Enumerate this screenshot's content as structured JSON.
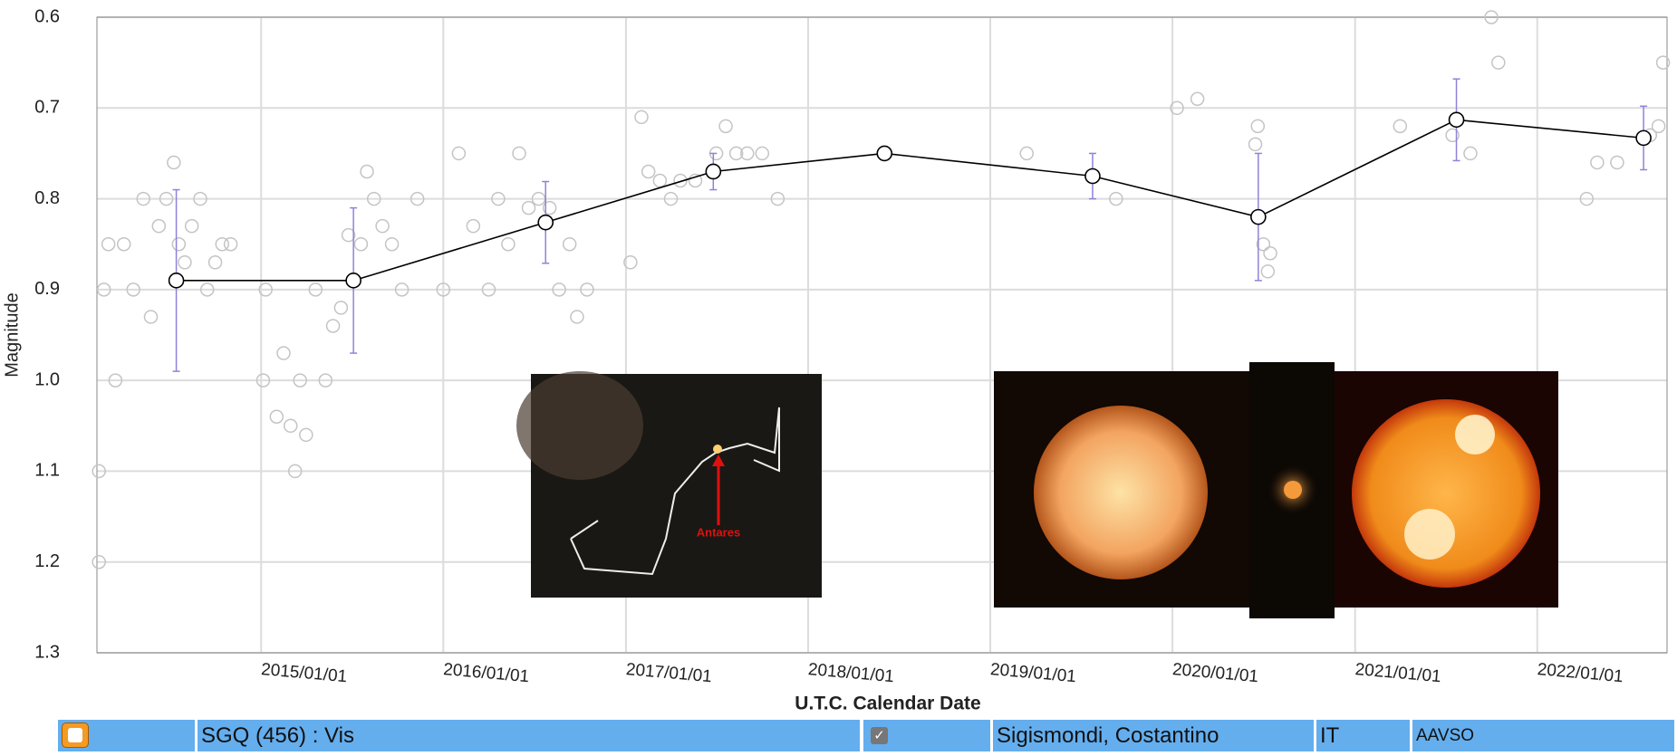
{
  "chart_data": {
    "type": "line",
    "x_label": "U.T.C. Calendar Date",
    "y_label": "Magnitude",
    "xlim": [
      "2014/02/06",
      "2022/09/18"
    ],
    "xticks": [
      "2015/01/01",
      "2016/01/01",
      "2017/01/01",
      "2018/01/01",
      "2019/01/01",
      "2020/01/01",
      "2021/01/01",
      "2022/01/01"
    ],
    "ylim": [
      0.6,
      1.3
    ],
    "y_inverted": true,
    "yticks": [
      0.6,
      0.7,
      0.8,
      0.9,
      {
        "value": 1,
        "label": "1.0"
      },
      1.1,
      1.2,
      1.3
    ],
    "grid": true,
    "series": [
      {
        "kind": "scatter",
        "color": "#c4c4c4",
        "x": [
          "2014/02/10",
          "2014/02/10",
          "2014/02/20",
          "2014/03/01",
          "2014/03/15",
          "2014/04/01",
          "2014/04/20",
          "2014/05/10",
          "2014/05/25",
          "2014/06/10",
          "2014/06/25",
          "2014/07/10",
          "2014/07/20",
          "2014/08/01",
          "2014/08/15",
          "2014/09/01",
          "2014/09/15",
          "2014/10/01",
          "2014/10/15",
          "2014/11/01",
          "2015/01/05",
          "2015/01/10",
          "2015/02/01",
          "2015/02/15",
          "2015/03/01",
          "2015/03/10",
          "2015/03/20",
          "2015/04/01",
          "2015/04/20",
          "2015/05/10",
          "2015/05/25",
          "2015/06/10",
          "2015/06/25",
          "2015/07/20",
          "2015/08/01",
          "2015/08/15",
          "2015/09/01",
          "2015/09/20",
          "2015/10/10",
          "2015/11/10",
          "2016/01/01",
          "2016/02/01",
          "2016/03/01",
          "2016/04/01",
          "2016/04/20",
          "2016/05/10",
          "2016/06/01",
          "2016/06/20",
          "2016/07/10",
          "2016/08/01",
          "2016/08/20",
          "2016/09/10",
          "2016/09/25",
          "2016/10/15",
          "2017/01/10",
          "2017/02/01",
          "2017/02/15",
          "2017/03/10",
          "2017/04/01",
          "2017/04/20",
          "2017/05/20",
          "2017/07/01",
          "2017/07/20",
          "2017/08/10",
          "2017/09/01",
          "2017/10/01",
          "2017/11/01",
          "2018/06/05",
          "2019/03/15",
          "2019/09/10",
          "2020/01/10",
          "2020/02/20",
          "2020/06/15",
          "2020/06/20",
          "2020/07/01",
          "2020/07/10",
          "2020/07/15",
          "2021/04/01",
          "2021/07/15",
          "2021/08/20",
          "2021/10/01",
          "2021/10/15",
          "2022/04/10",
          "2022/05/01",
          "2022/06/10",
          "2022/08/15",
          "2022/09/01",
          "2022/09/10"
        ],
        "values": [
          1.2,
          1.1,
          0.9,
          0.85,
          1.0,
          0.85,
          0.9,
          0.8,
          0.93,
          0.83,
          0.8,
          0.76,
          0.85,
          0.87,
          0.83,
          0.8,
          0.9,
          0.87,
          0.85,
          0.85,
          1.0,
          0.9,
          1.04,
          0.97,
          1.05,
          1.1,
          1.0,
          1.06,
          0.9,
          1.0,
          0.94,
          0.92,
          0.84,
          0.85,
          0.77,
          0.8,
          0.83,
          0.85,
          0.9,
          0.8,
          0.9,
          0.75,
          0.83,
          0.9,
          0.8,
          0.85,
          0.75,
          0.81,
          0.8,
          0.81,
          0.9,
          0.85,
          0.93,
          0.9,
          0.87,
          0.71,
          0.77,
          0.78,
          0.8,
          0.78,
          0.78,
          0.75,
          0.72,
          0.75,
          0.75,
          0.75,
          0.8,
          0.75,
          0.75,
          0.8,
          0.7,
          0.69,
          0.74,
          0.72,
          0.85,
          0.88,
          0.86,
          0.72,
          0.73,
          0.75,
          0.6,
          0.65,
          0.8,
          0.76,
          0.76,
          0.73,
          0.72,
          0.65
        ]
      },
      {
        "kind": "mean",
        "color": "#000000",
        "error_color": "#9082d8",
        "x": [
          "2014/07/15",
          "2015/07/05",
          "2016/07/24",
          "2017/06/25",
          "2018/06/03",
          "2019/07/25",
          "2020/06/21",
          "2021/07/23",
          "2022/08/02"
        ],
        "values": [
          0.89,
          0.89,
          0.826,
          0.77,
          0.75,
          0.775,
          0.82,
          0.713,
          0.733
        ],
        "errors": [
          0.1,
          0.08,
          0.045,
          0.02,
          0.005,
          0.025,
          0.07,
          0.045,
          0.035
        ]
      }
    ]
  },
  "image_label": "Antares",
  "observer_row": {
    "series": "SGQ (456) : Vis",
    "observer": "Sigismondi, Costantino",
    "country": "IT",
    "source": "AAVSO"
  }
}
